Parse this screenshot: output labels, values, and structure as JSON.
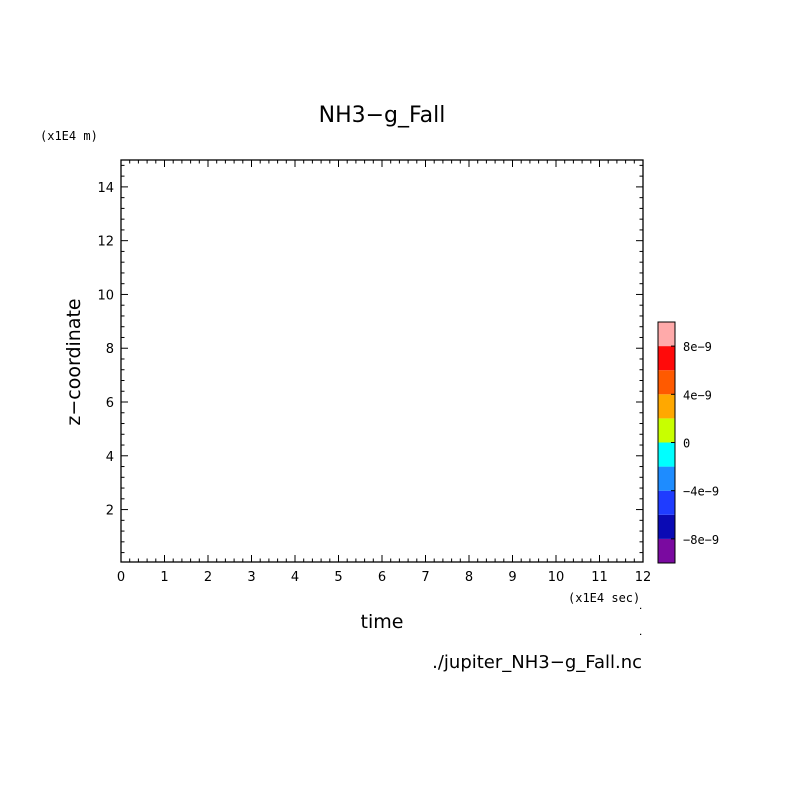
{
  "chart_data": {
    "type": "heatmap",
    "title": "NH3−g_Fall",
    "xlabel": "time",
    "ylabel": "z−coordinate",
    "x_unit": "(x1E4 sec)",
    "y_unit": "(x1E4 m)",
    "xlim": [
      0,
      12
    ],
    "ylim": [
      0.05,
      15
    ],
    "x_ticks": [
      0,
      1,
      2,
      3,
      4,
      5,
      6,
      7,
      8,
      9,
      10,
      11,
      12
    ],
    "y_ticks": [
      2,
      4,
      6,
      8,
      10,
      12,
      14
    ],
    "source": "./jupiter_NH3−g_Fall.nc",
    "grid": false,
    "colorbar": {
      "placement": "right",
      "min": -1e-08,
      "max": 1e-08,
      "ticks": [
        "8e−9",
        "4e−9",
        "0",
        "−4e−9",
        "−8e−9"
      ],
      "tick_values": [
        8e-09,
        4e-09,
        0,
        -4e-09,
        -8e-09
      ],
      "colors": [
        "#7a0aa0",
        "#0a0ab4",
        "#1f3cff",
        "#1e8cff",
        "#00ffff",
        "#c8ff00",
        "#ffa800",
        "#ff5a00",
        "#ff0a0a",
        "#ffaaaa"
      ]
    },
    "data": []
  }
}
